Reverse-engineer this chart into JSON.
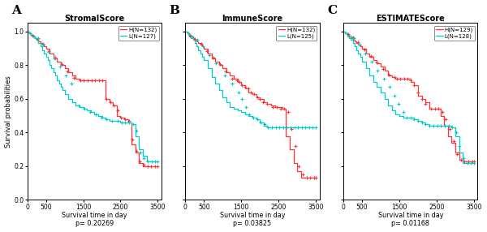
{
  "panels": [
    {
      "label": "A",
      "title": "StromalScore",
      "pvalue": "p= 0.20269",
      "legend_H": "H(N=132)",
      "legend_L": "L(N=127)",
      "H_times": [
        0,
        50,
        100,
        150,
        200,
        250,
        300,
        350,
        400,
        450,
        500,
        600,
        700,
        800,
        900,
        1000,
        1100,
        1200,
        1300,
        1400,
        1500,
        1600,
        1700,
        1800,
        1900,
        2000,
        2050,
        2100,
        2200,
        2300,
        2400,
        2500,
        2600,
        2700,
        2800,
        2900,
        3000,
        3100,
        3200,
        3300,
        3400,
        3500
      ],
      "H_surv": [
        1.0,
        0.99,
        0.98,
        0.97,
        0.96,
        0.95,
        0.94,
        0.93,
        0.92,
        0.91,
        0.9,
        0.87,
        0.84,
        0.82,
        0.8,
        0.78,
        0.76,
        0.74,
        0.72,
        0.71,
        0.71,
        0.71,
        0.71,
        0.71,
        0.71,
        0.71,
        0.71,
        0.6,
        0.58,
        0.56,
        0.5,
        0.49,
        0.48,
        0.46,
        0.33,
        0.28,
        0.22,
        0.2,
        0.2,
        0.2,
        0.2,
        0.2
      ],
      "H_censors": [
        130,
        260,
        420,
        580,
        750,
        920,
        1080,
        1250,
        1420,
        1520,
        1620,
        1720,
        1820,
        1920,
        2020,
        2120,
        2220,
        2320,
        2420,
        2520,
        2620,
        2720,
        2820,
        2920,
        3020,
        3120,
        3220,
        3320,
        3420,
        3500
      ],
      "H_censor_surv": [
        0.975,
        0.955,
        0.925,
        0.885,
        0.845,
        0.805,
        0.765,
        0.725,
        0.71,
        0.71,
        0.71,
        0.71,
        0.71,
        0.71,
        0.71,
        0.6,
        0.58,
        0.56,
        0.53,
        0.49,
        0.48,
        0.47,
        0.36,
        0.29,
        0.23,
        0.21,
        0.2,
        0.2,
        0.2,
        0.2
      ],
      "L_times": [
        0,
        50,
        100,
        150,
        200,
        250,
        300,
        350,
        400,
        450,
        500,
        550,
        600,
        650,
        700,
        750,
        800,
        850,
        900,
        950,
        1000,
        1100,
        1200,
        1300,
        1400,
        1500,
        1600,
        1700,
        1800,
        1900,
        2000,
        2100,
        2200,
        2300,
        2400,
        2500,
        2600,
        2700,
        2800,
        2900,
        3000,
        3100,
        3200,
        3300,
        3400,
        3500
      ],
      "L_surv": [
        1.0,
        0.99,
        0.98,
        0.97,
        0.96,
        0.95,
        0.93,
        0.91,
        0.89,
        0.87,
        0.85,
        0.83,
        0.8,
        0.78,
        0.76,
        0.74,
        0.71,
        0.69,
        0.67,
        0.65,
        0.63,
        0.6,
        0.58,
        0.56,
        0.55,
        0.54,
        0.53,
        0.52,
        0.51,
        0.5,
        0.49,
        0.48,
        0.47,
        0.47,
        0.47,
        0.46,
        0.46,
        0.46,
        0.45,
        0.38,
        0.3,
        0.26,
        0.23,
        0.23,
        0.23,
        0.23
      ],
      "L_censors": [
        80,
        180,
        290,
        430,
        570,
        720,
        880,
        1030,
        1180,
        1380,
        1530,
        1680,
        1830,
        1980,
        2130,
        2280,
        2430,
        2530,
        2630,
        2730,
        2830,
        2930,
        3030,
        3130,
        3230,
        3330,
        3430,
        3500
      ],
      "L_censor_surv": [
        0.99,
        0.97,
        0.96,
        0.92,
        0.88,
        0.84,
        0.79,
        0.74,
        0.69,
        0.56,
        0.54,
        0.52,
        0.51,
        0.49,
        0.48,
        0.47,
        0.47,
        0.46,
        0.46,
        0.46,
        0.45,
        0.41,
        0.28,
        0.25,
        0.23,
        0.23,
        0.23,
        0.23
      ]
    },
    {
      "label": "B",
      "title": "ImmuneScore",
      "pvalue": "p= 0.03825",
      "legend_H": "H(N=132)",
      "legend_L": "L(N=125)",
      "H_times": [
        0,
        50,
        100,
        150,
        200,
        250,
        300,
        350,
        400,
        450,
        500,
        600,
        700,
        800,
        900,
        1000,
        1100,
        1200,
        1300,
        1400,
        1500,
        1600,
        1700,
        1800,
        1900,
        2000,
        2100,
        2200,
        2300,
        2400,
        2500,
        2600,
        2700,
        2800,
        2900,
        3000,
        3100,
        3200,
        3300,
        3400,
        3500
      ],
      "H_surv": [
        1.0,
        0.99,
        0.98,
        0.97,
        0.96,
        0.95,
        0.94,
        0.93,
        0.92,
        0.91,
        0.9,
        0.87,
        0.84,
        0.82,
        0.8,
        0.78,
        0.76,
        0.74,
        0.72,
        0.7,
        0.68,
        0.66,
        0.64,
        0.63,
        0.61,
        0.6,
        0.58,
        0.57,
        0.56,
        0.55,
        0.55,
        0.54,
        0.38,
        0.3,
        0.22,
        0.17,
        0.13,
        0.13,
        0.13,
        0.13,
        0.13
      ],
      "H_censors": [
        130,
        260,
        420,
        580,
        750,
        920,
        1080,
        1250,
        1380,
        1450,
        1520,
        1600,
        1680,
        1760,
        1840,
        1920,
        2000,
        2080,
        2200,
        2350,
        2450,
        2550,
        2650,
        2750,
        2850,
        2950,
        3050,
        3150,
        3250,
        3350,
        3450,
        3500
      ],
      "H_censor_surv": [
        0.975,
        0.955,
        0.925,
        0.885,
        0.845,
        0.805,
        0.765,
        0.72,
        0.71,
        0.7,
        0.68,
        0.67,
        0.66,
        0.64,
        0.63,
        0.61,
        0.6,
        0.58,
        0.57,
        0.55,
        0.55,
        0.54,
        0.54,
        0.52,
        0.42,
        0.32,
        0.2,
        0.15,
        0.13,
        0.13,
        0.13,
        0.13
      ],
      "L_times": [
        0,
        50,
        100,
        150,
        200,
        250,
        300,
        350,
        400,
        450,
        500,
        600,
        700,
        800,
        900,
        1000,
        1100,
        1200,
        1300,
        1400,
        1500,
        1600,
        1700,
        1800,
        1900,
        2000,
        2100,
        2200,
        2300,
        2400,
        2500,
        2600,
        2700,
        2800,
        2900,
        3000,
        3100,
        3200,
        3300,
        3400,
        3500
      ],
      "L_surv": [
        1.0,
        0.99,
        0.97,
        0.96,
        0.95,
        0.93,
        0.91,
        0.89,
        0.87,
        0.85,
        0.83,
        0.78,
        0.73,
        0.69,
        0.65,
        0.61,
        0.58,
        0.55,
        0.54,
        0.53,
        0.52,
        0.51,
        0.5,
        0.49,
        0.48,
        0.46,
        0.44,
        0.43,
        0.43,
        0.43,
        0.43,
        0.43,
        0.43,
        0.43,
        0.43,
        0.43,
        0.43,
        0.43,
        0.43,
        0.43,
        0.43
      ],
      "L_censors": [
        90,
        190,
        320,
        480,
        650,
        820,
        1050,
        1250,
        1420,
        1520,
        1620,
        1720,
        1820,
        1920,
        2020,
        2120,
        2220,
        2320,
        2420,
        2520,
        2620,
        2720,
        2820,
        2920,
        3020,
        3120,
        3220,
        3320,
        3420,
        3500
      ],
      "L_censor_surv": [
        0.99,
        0.97,
        0.95,
        0.91,
        0.86,
        0.81,
        0.74,
        0.69,
        0.64,
        0.6,
        0.55,
        0.51,
        0.49,
        0.48,
        0.46,
        0.45,
        0.43,
        0.43,
        0.43,
        0.43,
        0.43,
        0.43,
        0.43,
        0.43,
        0.43,
        0.43,
        0.43,
        0.43,
        0.43,
        0.43
      ]
    },
    {
      "label": "C",
      "title": "ESTIMATEScore",
      "pvalue": "p= 0.01168",
      "legend_H": "H(N=129)",
      "legend_L": "L(N=128)",
      "H_times": [
        0,
        50,
        100,
        150,
        200,
        250,
        300,
        350,
        400,
        450,
        500,
        600,
        700,
        800,
        900,
        1000,
        1100,
        1200,
        1300,
        1400,
        1500,
        1600,
        1700,
        1800,
        1900,
        2000,
        2100,
        2200,
        2300,
        2400,
        2500,
        2600,
        2700,
        2800,
        2900,
        3000,
        3100,
        3200,
        3300,
        3400,
        3500
      ],
      "H_surv": [
        1.0,
        0.99,
        0.98,
        0.97,
        0.96,
        0.95,
        0.94,
        0.93,
        0.92,
        0.91,
        0.9,
        0.87,
        0.85,
        0.83,
        0.81,
        0.79,
        0.77,
        0.74,
        0.73,
        0.72,
        0.72,
        0.72,
        0.72,
        0.7,
        0.68,
        0.62,
        0.6,
        0.58,
        0.54,
        0.54,
        0.54,
        0.5,
        0.44,
        0.38,
        0.34,
        0.28,
        0.24,
        0.23,
        0.23,
        0.23,
        0.23
      ],
      "H_censors": [
        120,
        250,
        400,
        560,
        730,
        900,
        1060,
        1210,
        1360,
        1440,
        1530,
        1620,
        1710,
        1800,
        1900,
        2000,
        2100,
        2200,
        2350,
        2450,
        2550,
        2650,
        2750,
        2850,
        2950,
        3050,
        3150,
        3250,
        3350,
        3450,
        3500
      ],
      "H_censor_surv": [
        0.985,
        0.965,
        0.935,
        0.895,
        0.855,
        0.815,
        0.775,
        0.745,
        0.73,
        0.72,
        0.72,
        0.72,
        0.72,
        0.71,
        0.68,
        0.64,
        0.6,
        0.57,
        0.54,
        0.54,
        0.54,
        0.52,
        0.48,
        0.42,
        0.35,
        0.27,
        0.24,
        0.23,
        0.23,
        0.23,
        0.23
      ],
      "L_times": [
        0,
        50,
        100,
        150,
        200,
        250,
        300,
        350,
        400,
        450,
        500,
        600,
        700,
        800,
        900,
        1000,
        1100,
        1200,
        1300,
        1400,
        1500,
        1600,
        1700,
        1800,
        1900,
        2000,
        2100,
        2200,
        2300,
        2400,
        2500,
        2600,
        2700,
        2800,
        2900,
        3000,
        3100,
        3200,
        3300,
        3400,
        3500
      ],
      "L_surv": [
        1.0,
        0.99,
        0.97,
        0.96,
        0.95,
        0.93,
        0.91,
        0.89,
        0.87,
        0.85,
        0.82,
        0.78,
        0.74,
        0.7,
        0.67,
        0.64,
        0.6,
        0.56,
        0.53,
        0.51,
        0.5,
        0.49,
        0.49,
        0.49,
        0.48,
        0.47,
        0.46,
        0.45,
        0.44,
        0.44,
        0.44,
        0.44,
        0.44,
        0.44,
        0.43,
        0.38,
        0.28,
        0.22,
        0.22,
        0.22,
        0.22
      ],
      "L_censors": [
        90,
        185,
        290,
        440,
        590,
        755,
        920,
        1090,
        1230,
        1360,
        1480,
        1600,
        1700,
        1800,
        1900,
        2000,
        2100,
        2200,
        2300,
        2420,
        2520,
        2620,
        2720,
        2820,
        2920,
        3020,
        3120,
        3220,
        3320,
        3420,
        3500
      ],
      "L_censor_surv": [
        0.99,
        0.97,
        0.96,
        0.92,
        0.87,
        0.82,
        0.77,
        0.72,
        0.67,
        0.62,
        0.57,
        0.52,
        0.49,
        0.49,
        0.48,
        0.47,
        0.46,
        0.45,
        0.44,
        0.44,
        0.44,
        0.44,
        0.44,
        0.44,
        0.43,
        0.4,
        0.32,
        0.25,
        0.22,
        0.22,
        0.22
      ]
    }
  ],
  "color_H": "#FF3333",
  "color_L": "#00CCCC",
  "xlim": [
    0,
    3600
  ],
  "ylim": [
    0.0,
    1.05
  ],
  "xticks": [
    0,
    500,
    1500,
    2500,
    3500
  ],
  "yticks": [
    0.0,
    0.2,
    0.4,
    0.6,
    0.8,
    1.0
  ],
  "xlabel": "Survival time in day",
  "ylabel": "Survival probabilities",
  "bg_color": "#FFFFFF"
}
